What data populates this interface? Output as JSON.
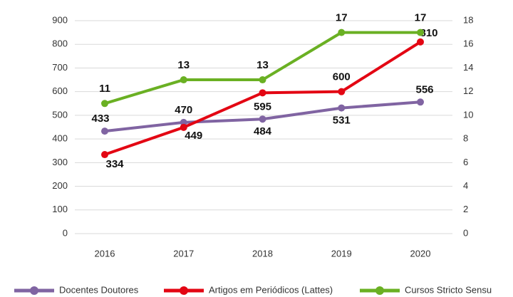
{
  "chart_data": {
    "type": "line",
    "categories": [
      "2016",
      "2017",
      "2018",
      "2019",
      "2020"
    ],
    "series": [
      {
        "name": "Docentes Doutores",
        "color": "#8064a2",
        "values": [
          433,
          470,
          484,
          531,
          556
        ]
      },
      {
        "name": "Artigos em Periódicos (Lattes)",
        "color": "#e30613",
        "values": [
          334,
          449,
          595,
          600,
          810
        ]
      },
      {
        "name": "Cursos Stricto Sensu",
        "color": "#6ab023",
        "values": [
          11,
          13,
          13,
          17,
          17
        ],
        "axis": "y2"
      }
    ],
    "ylim": [
      0,
      900
    ],
    "yticks": [
      0,
      100,
      200,
      300,
      400,
      500,
      600,
      700,
      800,
      900
    ],
    "y2lim": [
      0,
      18
    ],
    "y2ticks": [
      0,
      2,
      4,
      6,
      8,
      10,
      12,
      14,
      16,
      18
    ],
    "grid": true,
    "legend": "bottom"
  }
}
